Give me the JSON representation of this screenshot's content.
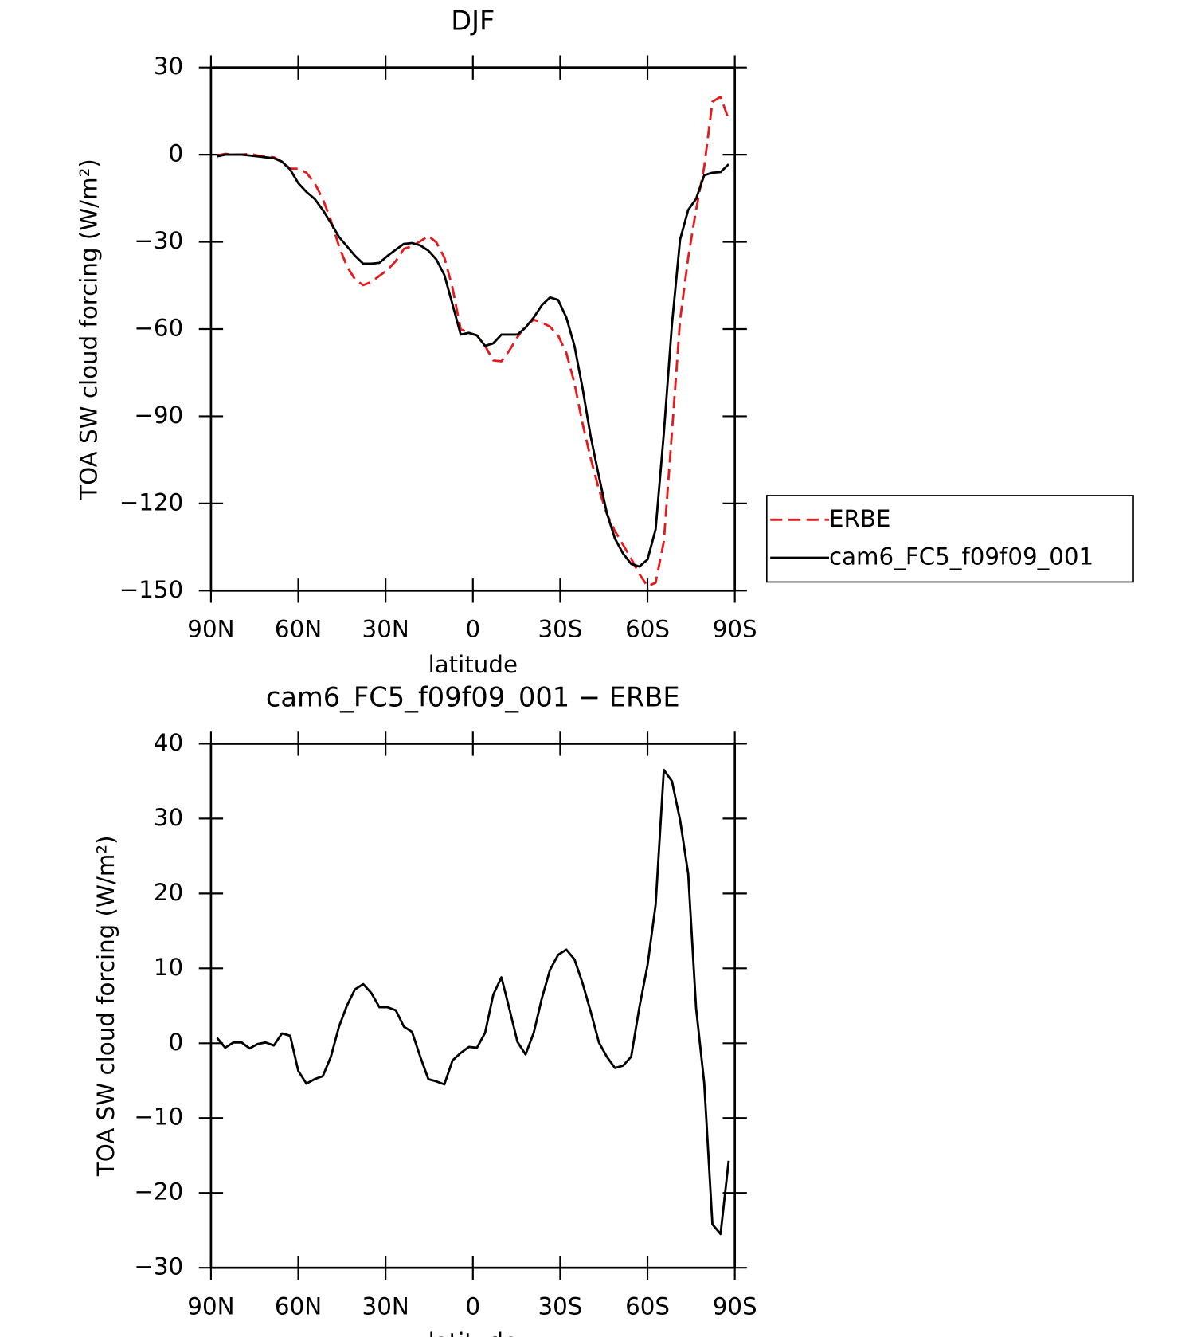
{
  "chart_data": [
    {
      "type": "line",
      "title": "DJF",
      "xlabel": "latitude",
      "ylabel": "TOA SW cloud forcing (W/m²)",
      "x": [
        87.9,
        85.1,
        82.3,
        79.5,
        76.7,
        74.0,
        71.2,
        68.4,
        65.6,
        62.8,
        60.0,
        57.2,
        54.4,
        51.6,
        48.8,
        46.0,
        43.3,
        40.5,
        37.7,
        34.9,
        32.1,
        29.3,
        26.5,
        23.7,
        20.9,
        18.1,
        15.3,
        12.6,
        9.8,
        7.0,
        4.2,
        1.4,
        -1.4,
        -4.2,
        -7.0,
        -9.8,
        -12.6,
        -15.3,
        -18.1,
        -20.9,
        -23.7,
        -26.5,
        -29.3,
        -32.1,
        -34.9,
        -37.7,
        -40.5,
        -43.3,
        -46.0,
        -48.8,
        -51.6,
        -54.4,
        -57.2,
        -60.0,
        -62.8,
        -65.6,
        -68.4,
        -71.2,
        -74.0,
        -76.7,
        -79.5,
        -82.3,
        -85.1,
        -87.9
      ],
      "series": [
        {
          "name": "ERBE",
          "color": "#e41a1c",
          "dash": true,
          "values": [
            -0.3,
            0.3,
            0,
            0,
            0.3,
            -0.3,
            -0.6,
            -0.9,
            -2.4,
            -4.8,
            -4.8,
            -6.2,
            -9.8,
            -15.2,
            -22.6,
            -31.5,
            -38.4,
            -42.9,
            -44.9,
            -43.8,
            -41.7,
            -39.6,
            -36.6,
            -32.4,
            -31.5,
            -29.8,
            -28,
            -30.1,
            -35.4,
            -45.8,
            -60.1,
            -61.3,
            -62.2,
            -65.8,
            -70.8,
            -71.1,
            -67.3,
            -62.8,
            -58.9,
            -56.8,
            -57.7,
            -59.2,
            -62.2,
            -68.2,
            -78.6,
            -92.6,
            -104.5,
            -115.2,
            -123.5,
            -129.5,
            -134.2,
            -139,
            -144.3,
            -148.5,
            -147.3,
            -133,
            -95.5,
            -56.8,
            -35.4,
            -19,
            -4.2,
            18.2,
            19.9,
            12.2
          ]
        },
        {
          "name": "cam6_FC5_f09f09_001",
          "color": "#000000",
          "dash": false,
          "values": [
            -0.6,
            0,
            0,
            0,
            -0.3,
            -0.6,
            -0.9,
            -1.2,
            -2.4,
            -5.1,
            -9.8,
            -12.8,
            -15.2,
            -19,
            -23.5,
            -28.3,
            -31.5,
            -34.8,
            -37.5,
            -37.5,
            -37.2,
            -34.8,
            -32.7,
            -30.7,
            -30.4,
            -31.2,
            -33,
            -36,
            -41.4,
            -51.5,
            -61.9,
            -61.3,
            -62.2,
            -65.8,
            -64.9,
            -61.9,
            -61.9,
            -61.9,
            -59.5,
            -56,
            -51.8,
            -49.1,
            -50,
            -56,
            -65.8,
            -80.4,
            -97,
            -110.7,
            -123.2,
            -132.1,
            -137.2,
            -140.8,
            -141.7,
            -139.3,
            -128.9,
            -95.8,
            -58.3,
            -29.2,
            -19,
            -15.2,
            -7.1,
            -6.2,
            -6,
            -3.3
          ]
        }
      ],
      "xlim": [
        90,
        -90
      ],
      "xticks": [
        {
          "value": 90,
          "label": "90N"
        },
        {
          "value": 60,
          "label": "60N"
        },
        {
          "value": 30,
          "label": "30N"
        },
        0,
        {
          "value": -30,
          "label": "30S"
        },
        {
          "value": -60,
          "label": "60S"
        },
        {
          "value": -90,
          "label": "90S"
        }
      ],
      "ylim": [
        -150,
        30
      ],
      "yticks": [
        30,
        0,
        {
          "value": -30,
          "label": "−30"
        },
        {
          "value": -60,
          "label": "−60"
        },
        {
          "value": -90,
          "label": "−90"
        },
        {
          "value": -120,
          "label": "−120"
        },
        {
          "value": -150,
          "label": "−150"
        }
      ],
      "legend": "right"
    },
    {
      "type": "line",
      "title": "cam6_FC5_f09f09_001 − ERBE",
      "xlabel": "latitude",
      "ylabel": "TOA SW cloud forcing (W/m²)",
      "x": [
        87.9,
        85.1,
        82.3,
        79.5,
        76.7,
        74.0,
        71.2,
        68.4,
        65.6,
        62.8,
        60.0,
        57.2,
        54.4,
        51.6,
        48.8,
        46.0,
        43.3,
        40.5,
        37.7,
        34.9,
        32.1,
        29.3,
        26.5,
        23.7,
        20.9,
        18.1,
        15.3,
        12.6,
        9.8,
        7.0,
        4.2,
        1.4,
        -1.4,
        -4.2,
        -7.0,
        -9.8,
        -12.6,
        -15.3,
        -18.1,
        -20.9,
        -23.7,
        -26.5,
        -29.3,
        -32.1,
        -34.9,
        -37.7,
        -40.5,
        -43.3,
        -46.0,
        -48.8,
        -51.6,
        -54.4,
        -57.2,
        -60.0,
        -62.8,
        -65.6,
        -68.4,
        -71.2,
        -74.0,
        -76.7,
        -79.5,
        -82.3,
        -85.1,
        -87.9
      ],
      "values": [
        0.7,
        -0.6,
        0.1,
        0.1,
        -0.7,
        -0.1,
        0.1,
        -0.3,
        1.3,
        1.0,
        -3.7,
        -5.4,
        -4.8,
        -4.4,
        -1.8,
        2.2,
        5.0,
        7.2,
        7.9,
        6.7,
        4.8,
        4.8,
        4.4,
        2.2,
        1.5,
        -1.8,
        -4.8,
        -5.1,
        -5.5,
        -2.3,
        -1.3,
        -0.5,
        -0.6,
        1.4,
        6.5,
        8.8,
        4.5,
        0.2,
        -1.5,
        1.4,
        6.0,
        9.8,
        11.8,
        12.5,
        11.2,
        8.0,
        4.2,
        0.1,
        -1.8,
        -3.3,
        -3.0,
        -1.8,
        4.8,
        10.4,
        18.5,
        36.5,
        35.0,
        29.8,
        22.6,
        4.7,
        -5.3,
        -24.2,
        -25.5,
        -15.7
      ],
      "color": "#000000",
      "xlim": [
        90,
        -90
      ],
      "xticks": [
        {
          "value": 90,
          "label": "90N"
        },
        {
          "value": 60,
          "label": "60N"
        },
        {
          "value": 30,
          "label": "30N"
        },
        0,
        {
          "value": -30,
          "label": "30S"
        },
        {
          "value": -60,
          "label": "60S"
        },
        {
          "value": -90,
          "label": "90S"
        }
      ],
      "ylim": [
        -30,
        40
      ],
      "yticks": [
        40,
        30,
        20,
        10,
        0,
        {
          "value": -10,
          "label": "−10"
        },
        {
          "value": -20,
          "label": "−20"
        },
        {
          "value": -30,
          "label": "−30"
        }
      ]
    }
  ]
}
